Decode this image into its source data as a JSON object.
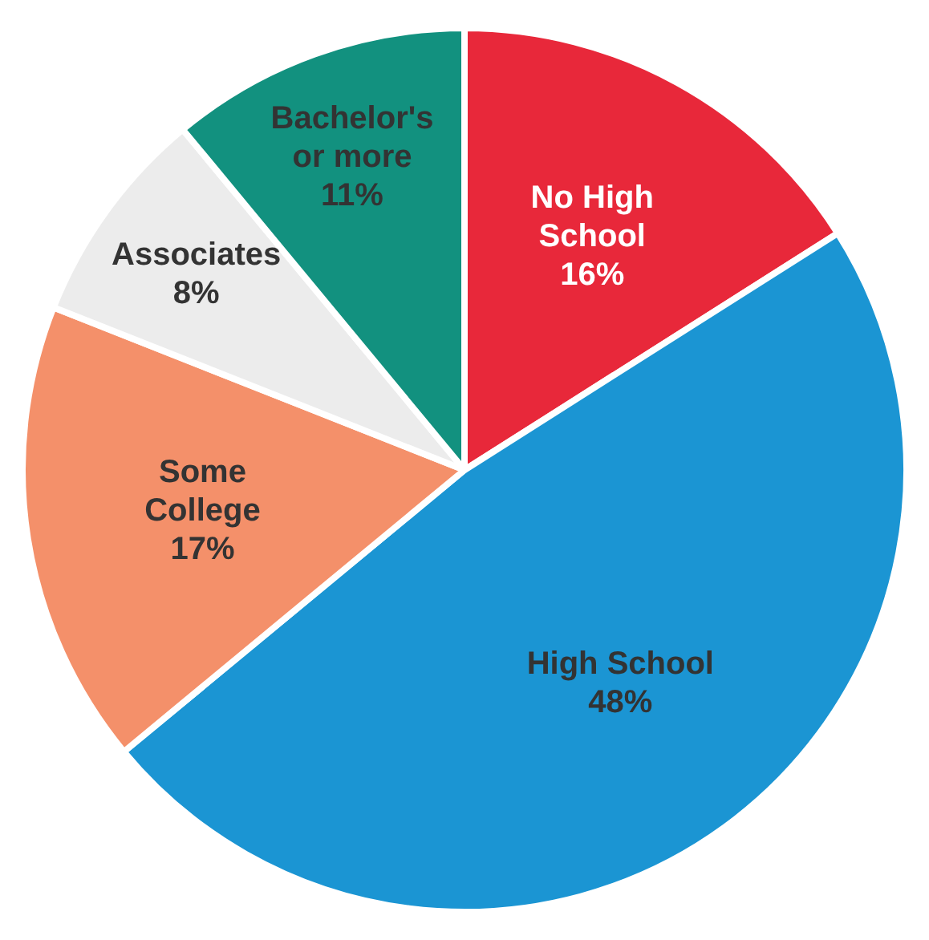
{
  "chart_data": {
    "type": "pie",
    "categories": [
      "No High School",
      "High School",
      "Some College",
      "Associates",
      "Bachelor's or more"
    ],
    "values": [
      16,
      48,
      17,
      8,
      11
    ],
    "colors": [
      "#e8283a",
      "#1b95d3",
      "#f4906a",
      "#ececec",
      "#12917f"
    ],
    "value_labels": [
      "16%",
      "48%",
      "17%",
      "8%",
      "11%"
    ],
    "legend": false
  }
}
